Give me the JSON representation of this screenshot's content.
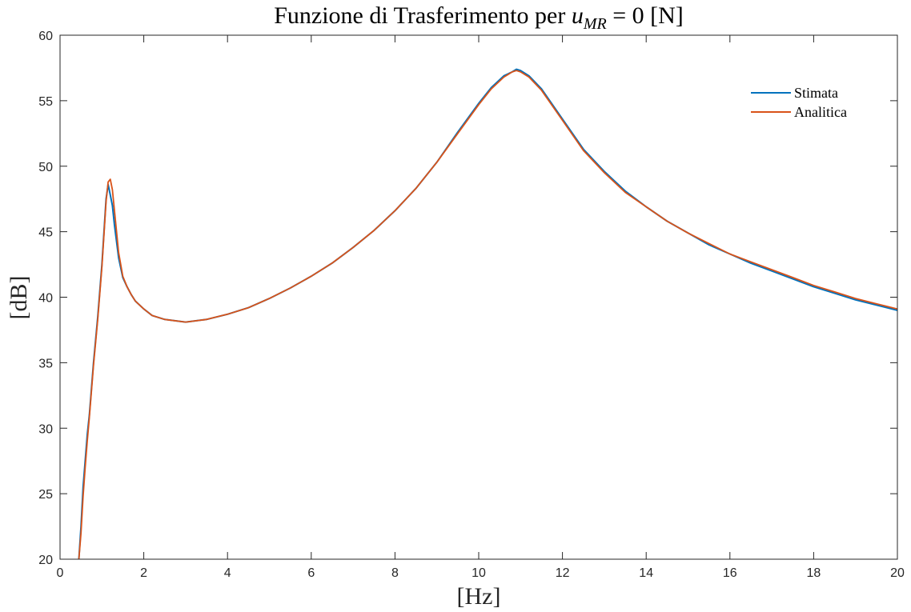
{
  "chart_data": {
    "type": "line",
    "title": {
      "prefix": "Funzione di Trasferimento per ",
      "var": "u",
      "sub": "MR",
      "suffix": " = 0 [N]"
    },
    "xlabel": "[Hz]",
    "ylabel": "[dB]",
    "xlim": [
      0,
      20
    ],
    "ylim": [
      20,
      60
    ],
    "xticks": [
      0,
      2,
      4,
      6,
      8,
      10,
      12,
      14,
      16,
      18,
      20
    ],
    "yticks": [
      20,
      25,
      30,
      35,
      40,
      45,
      50,
      55,
      60
    ],
    "grid": false,
    "legend_position": "top-right",
    "series": [
      {
        "name": "Stimata",
        "color": "#0072BD",
        "x": [
          0.45,
          0.5,
          0.55,
          0.6,
          0.65,
          0.7,
          0.8,
          0.9,
          1.0,
          1.05,
          1.1,
          1.15,
          1.2,
          1.25,
          1.3,
          1.4,
          1.5,
          1.6,
          1.7,
          1.8,
          2.0,
          2.2,
          2.5,
          3.0,
          3.5,
          4.0,
          4.5,
          5.0,
          5.5,
          6.0,
          6.5,
          7.0,
          7.5,
          8.0,
          8.5,
          9.0,
          9.5,
          10.0,
          10.3,
          10.6,
          10.8,
          10.9,
          11.0,
          11.2,
          11.5,
          12.0,
          12.5,
          13.0,
          13.5,
          14.0,
          14.5,
          15.0,
          15.5,
          16.0,
          16.5,
          17.0,
          17.5,
          18.0,
          18.5,
          19.0,
          19.5,
          20.0
        ],
        "values": [
          20.0,
          22.5,
          25.5,
          27.5,
          29.5,
          31.0,
          35.0,
          38.5,
          42.5,
          45.0,
          47.5,
          48.6,
          47.8,
          47.0,
          45.5,
          43.0,
          41.5,
          40.8,
          40.2,
          39.7,
          39.1,
          38.6,
          38.3,
          38.1,
          38.3,
          38.7,
          39.2,
          39.9,
          40.7,
          41.6,
          42.6,
          43.8,
          45.1,
          46.6,
          48.3,
          50.3,
          52.6,
          54.8,
          56.0,
          56.9,
          57.2,
          57.4,
          57.3,
          56.9,
          55.9,
          53.6,
          51.3,
          49.6,
          48.1,
          46.9,
          45.8,
          44.9,
          44.0,
          43.3,
          42.6,
          42.0,
          41.4,
          40.8,
          40.3,
          39.8,
          39.4,
          39.0
        ]
      },
      {
        "name": "Analitica",
        "color": "#D95319",
        "x": [
          0.45,
          0.5,
          0.55,
          0.6,
          0.65,
          0.7,
          0.8,
          0.9,
          1.0,
          1.05,
          1.1,
          1.15,
          1.2,
          1.25,
          1.3,
          1.4,
          1.5,
          1.6,
          1.7,
          1.8,
          2.0,
          2.2,
          2.5,
          3.0,
          3.5,
          4.0,
          4.5,
          5.0,
          5.5,
          6.0,
          6.5,
          7.0,
          7.5,
          8.0,
          8.5,
          9.0,
          9.5,
          10.0,
          10.3,
          10.6,
          10.8,
          10.9,
          11.0,
          11.2,
          11.5,
          12.0,
          12.5,
          13.0,
          13.5,
          14.0,
          14.5,
          15.0,
          15.5,
          16.0,
          16.5,
          17.0,
          17.5,
          18.0,
          18.5,
          19.0,
          19.5,
          20.0
        ],
        "values": [
          20.0,
          22.0,
          24.8,
          27.0,
          29.0,
          30.8,
          34.8,
          38.3,
          42.3,
          44.8,
          47.3,
          48.8,
          49.0,
          48.2,
          46.6,
          43.4,
          41.6,
          40.8,
          40.2,
          39.7,
          39.1,
          38.6,
          38.3,
          38.1,
          38.3,
          38.7,
          39.2,
          39.9,
          40.7,
          41.6,
          42.6,
          43.8,
          45.1,
          46.6,
          48.3,
          50.3,
          52.5,
          54.7,
          55.9,
          56.8,
          57.2,
          57.3,
          57.2,
          56.8,
          55.8,
          53.5,
          51.2,
          49.5,
          48.0,
          46.9,
          45.8,
          44.9,
          44.1,
          43.3,
          42.7,
          42.1,
          41.5,
          40.9,
          40.4,
          39.9,
          39.5,
          39.1
        ]
      }
    ]
  }
}
